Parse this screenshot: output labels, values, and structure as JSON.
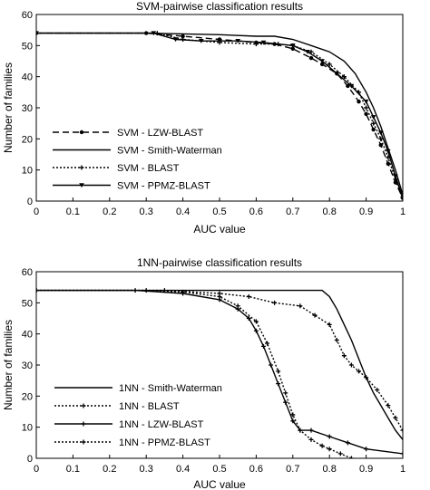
{
  "chart_data": [
    {
      "type": "line",
      "title": "SVM-pairwise classification results",
      "xlabel": "AUC value",
      "ylabel": "Number of families",
      "xlim": [
        0,
        1
      ],
      "ylim": [
        0,
        60
      ],
      "xticks": [
        "0",
        "0.1",
        "0.2",
        "0.3",
        "0.4",
        "0.5",
        "0.6",
        "0.7",
        "0.8",
        "0.9",
        "1"
      ],
      "yticks": [
        "0",
        "10",
        "20",
        "30",
        "40",
        "50",
        "60"
      ],
      "grid": false,
      "legend_position": "lower-left",
      "series": [
        {
          "name": "SVM - LZW-BLAST",
          "style": "dashed",
          "marker": "circle",
          "x": [
            0,
            0.3,
            0.4,
            0.5,
            0.6,
            0.65,
            0.7,
            0.75,
            0.78,
            0.82,
            0.85,
            0.88,
            0.9,
            0.92,
            0.94,
            0.96,
            0.98,
            1.0
          ],
          "y": [
            54,
            54,
            53,
            52,
            51,
            50.5,
            49,
            46,
            44,
            41,
            37,
            32,
            28,
            23,
            18,
            12,
            6,
            1
          ]
        },
        {
          "name": "SVM - Smith-Waterman",
          "style": "solid",
          "marker": "none",
          "x": [
            0,
            0.3,
            0.5,
            0.6,
            0.65,
            0.7,
            0.75,
            0.8,
            0.84,
            0.87,
            0.9,
            0.92,
            0.94,
            0.96,
            0.98,
            1.0
          ],
          "y": [
            54,
            54,
            53.5,
            53,
            53,
            52,
            50,
            48,
            45,
            41,
            35,
            30,
            24,
            17,
            10,
            2
          ]
        },
        {
          "name": "SVM - BLAST",
          "style": "dotted",
          "marker": "plus",
          "x": [
            0,
            0.33,
            0.4,
            0.5,
            0.6,
            0.66,
            0.7,
            0.75,
            0.8,
            0.84,
            0.88,
            0.9,
            0.92,
            0.94,
            0.96,
            0.98,
            1.0
          ],
          "y": [
            54,
            54,
            52,
            51,
            50.5,
            50.5,
            50,
            48,
            44,
            40,
            35,
            30,
            25,
            20,
            14,
            7,
            1
          ]
        },
        {
          "name": "SVM - PPMZ-BLAST",
          "style": "solid",
          "marker": "triangle-down",
          "x": [
            0,
            0.32,
            0.38,
            0.45,
            0.55,
            0.62,
            0.7,
            0.74,
            0.78,
            0.82,
            0.86,
            0.9,
            0.92,
            0.94,
            0.96,
            0.98,
            1.0
          ],
          "y": [
            54,
            54,
            52,
            51.5,
            51.5,
            51,
            50,
            48,
            45,
            41,
            37,
            32,
            27,
            22,
            16,
            8,
            1
          ]
        }
      ]
    },
    {
      "type": "line",
      "title": "1NN-pairwise classification results",
      "xlabel": "AUC value",
      "ylabel": "Number of families",
      "xlim": [
        0,
        1
      ],
      "ylim": [
        0,
        60
      ],
      "xticks": [
        "0",
        "0.1",
        "0.2",
        "0.3",
        "0.4",
        "0.5",
        "0.6",
        "0.7",
        "0.8",
        "0.9",
        "1"
      ],
      "yticks": [
        "0",
        "10",
        "20",
        "30",
        "40",
        "50",
        "60"
      ],
      "grid": false,
      "legend_position": "lower-left",
      "series": [
        {
          "name": "1NN - Smith-Waterman",
          "style": "solid",
          "marker": "none",
          "x": [
            0,
            0.5,
            0.7,
            0.78,
            0.8,
            0.82,
            0.84,
            0.86,
            0.88,
            0.9,
            0.92,
            0.94,
            0.96,
            0.98,
            1.0
          ],
          "y": [
            54,
            54,
            54,
            54,
            52,
            48,
            43,
            38,
            32,
            26,
            21,
            17,
            13,
            9,
            6
          ]
        },
        {
          "name": "1NN - BLAST",
          "style": "dotted",
          "marker": "plus",
          "x": [
            0,
            0.35,
            0.5,
            0.58,
            0.65,
            0.72,
            0.76,
            0.8,
            0.82,
            0.84,
            0.86,
            0.88,
            0.9,
            0.93,
            0.96,
            0.98,
            1.0
          ],
          "y": [
            54,
            54,
            53,
            52,
            50,
            49,
            46,
            43,
            38,
            33,
            30,
            28,
            26,
            22,
            17,
            13,
            9
          ]
        },
        {
          "name": "1NN - LZW-BLAST",
          "style": "solid",
          "marker": "plus",
          "x": [
            0,
            0.27,
            0.4,
            0.5,
            0.55,
            0.58,
            0.6,
            0.62,
            0.64,
            0.66,
            0.68,
            0.7,
            0.72,
            0.75,
            0.8,
            0.85,
            0.9,
            1.0
          ],
          "y": [
            54,
            54,
            53,
            51,
            48,
            45,
            41,
            36,
            30,
            24,
            18,
            12,
            9,
            9,
            7,
            5,
            3,
            1.5
          ]
        },
        {
          "name": "1NN - PPMZ-BLAST",
          "style": "dotted",
          "marker": "plus",
          "x": [
            0,
            0.3,
            0.4,
            0.5,
            0.55,
            0.6,
            0.63,
            0.66,
            0.68,
            0.7,
            0.72,
            0.75,
            0.78,
            0.8,
            0.83,
            0.86
          ],
          "y": [
            54,
            54,
            53.5,
            52,
            49,
            44,
            37,
            28,
            21,
            14,
            9,
            6,
            4,
            3,
            1.5,
            0
          ]
        }
      ]
    }
  ]
}
